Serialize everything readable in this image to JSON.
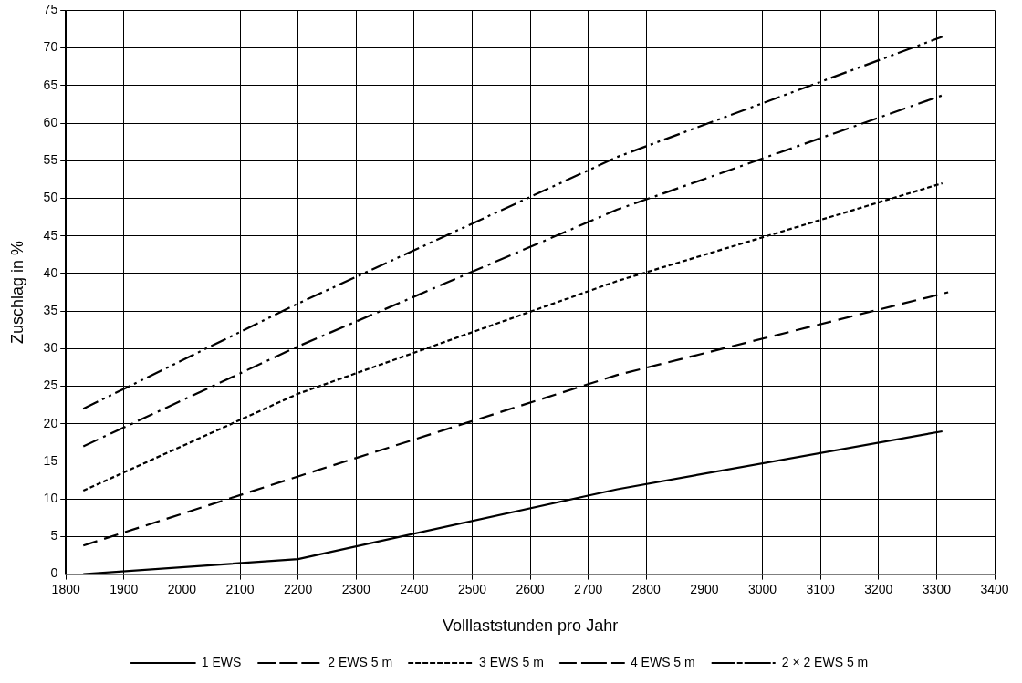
{
  "chart_data": {
    "type": "line",
    "xlabel": "Volllaststunden pro Jahr",
    "ylabel": "Zuschlag in %",
    "xlim": [
      1800,
      3400
    ],
    "xticks": [
      1800,
      1900,
      2000,
      2100,
      2200,
      2300,
      2400,
      2500,
      2600,
      2700,
      2800,
      2900,
      3000,
      3100,
      3200,
      3300,
      3400
    ],
    "ylim": [
      0,
      75
    ],
    "yticks": [
      0,
      5,
      10,
      15,
      20,
      25,
      30,
      35,
      40,
      45,
      50,
      55,
      60,
      65,
      70,
      75
    ],
    "grid": true,
    "legend": "bottom",
    "marker": "none",
    "series": [
      {
        "name": "1 EWS",
        "color": "#000000",
        "line_style": "solid",
        "x": [
          1830,
          2200,
          2750,
          3310
        ],
        "values": [
          0,
          2,
          11.3,
          19
        ]
      },
      {
        "name": "2 EWS 5 m",
        "color": "#000000",
        "line_style": "dashed",
        "x": [
          1830,
          2200,
          2750,
          3320
        ],
        "values": [
          3.8,
          13,
          26.5,
          37.5
        ]
      },
      {
        "name": "3 EWS 5 m",
        "color": "#000000",
        "line_style": "dotted",
        "x": [
          1830,
          2200,
          2750,
          3310
        ],
        "values": [
          11.1,
          24,
          39,
          52
        ]
      },
      {
        "name": "4 EWS 5 m",
        "color": "#000000",
        "line_style": "dashdot",
        "x": [
          1830,
          2200,
          2750,
          3310
        ],
        "values": [
          17,
          30.3,
          48.5,
          63.7
        ]
      },
      {
        "name": "2 × 2 EWS 5 m",
        "color": "#000000",
        "line_style": "dashdotdot",
        "x": [
          1830,
          2200,
          2750,
          3310
        ],
        "values": [
          22,
          36,
          55.5,
          71.5
        ]
      }
    ]
  }
}
